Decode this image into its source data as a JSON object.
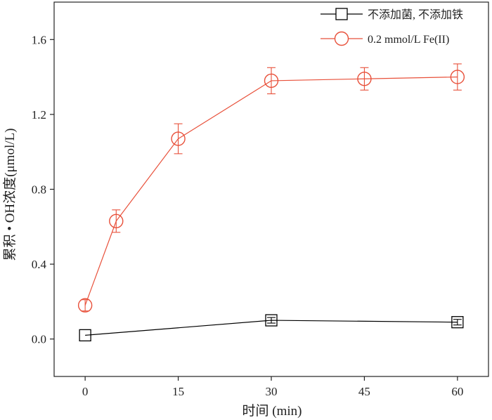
{
  "chart_data": {
    "type": "line",
    "xlabel": "时间 (min)",
    "ylabel": "累积 • OH浓度(μmol/L)",
    "x_ticks": [
      "0",
      "15",
      "30",
      "45",
      "60"
    ],
    "y_ticks": [
      "0.0",
      "0.4",
      "0.8",
      "1.2",
      "1.6"
    ],
    "xlim": [
      -5,
      65
    ],
    "ylim": [
      -0.2,
      1.8
    ],
    "grid": false,
    "legend_position": "top-right",
    "series": [
      {
        "name": "不添加菌, 不添加铁",
        "color": "#000000",
        "marker": "square",
        "x": [
          0,
          30,
          60
        ],
        "y": [
          0.02,
          0.1,
          0.09
        ],
        "err": [
          0,
          0.015,
          0.015
        ]
      },
      {
        "name": "0.2 mmol/L Fe(II)",
        "color": "#e8503a",
        "marker": "circle",
        "x": [
          0,
          5,
          15,
          30,
          45,
          60
        ],
        "y": [
          0.18,
          0.63,
          1.07,
          1.38,
          1.39,
          1.4
        ],
        "err": [
          0.03,
          0.06,
          0.08,
          0.07,
          0.06,
          0.07
        ]
      }
    ]
  }
}
